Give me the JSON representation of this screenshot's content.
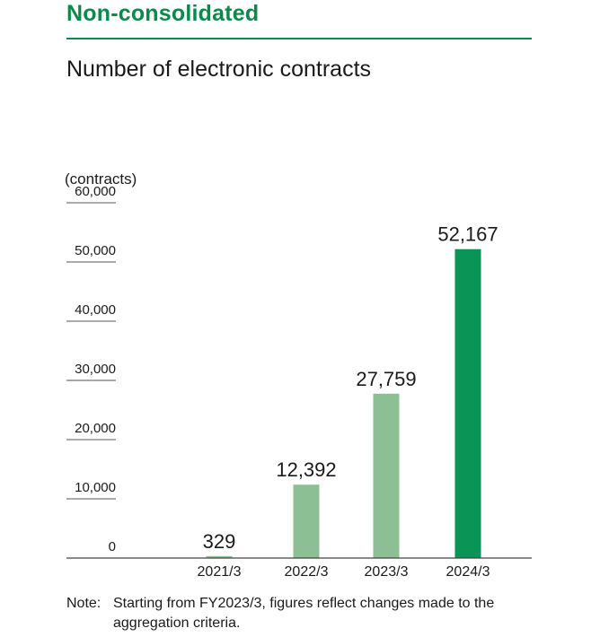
{
  "section": {
    "title": "Non-consolidated"
  },
  "chart_data": {
    "type": "bar",
    "title": "Number of electronic contracts",
    "ylabel": "(contracts)",
    "xlabel": "",
    "categories": [
      "2021/3",
      "2022/3",
      "2023/3",
      "2024/3"
    ],
    "values": [
      329,
      12392,
      27759,
      52167
    ],
    "value_labels": [
      "329",
      "12,392",
      "27,759",
      "52,167"
    ],
    "yticks": [
      0,
      10000,
      20000,
      30000,
      40000,
      50000,
      60000
    ],
    "ytick_labels": [
      "0",
      "10,000",
      "20,000",
      "30,000",
      "40,000",
      "50,000",
      "60,000"
    ],
    "ylim": [
      0,
      60000
    ],
    "grid": false,
    "colors": {
      "light_bar": "#8cbf94",
      "dark_bar": "#0a9455",
      "axis": "#444444",
      "tick_underline": "#555555"
    },
    "highlight_index": 3
  },
  "note": {
    "label": "Note:",
    "text": "Starting from FY2023/3, figures reflect changes made to the aggregation criteria."
  }
}
